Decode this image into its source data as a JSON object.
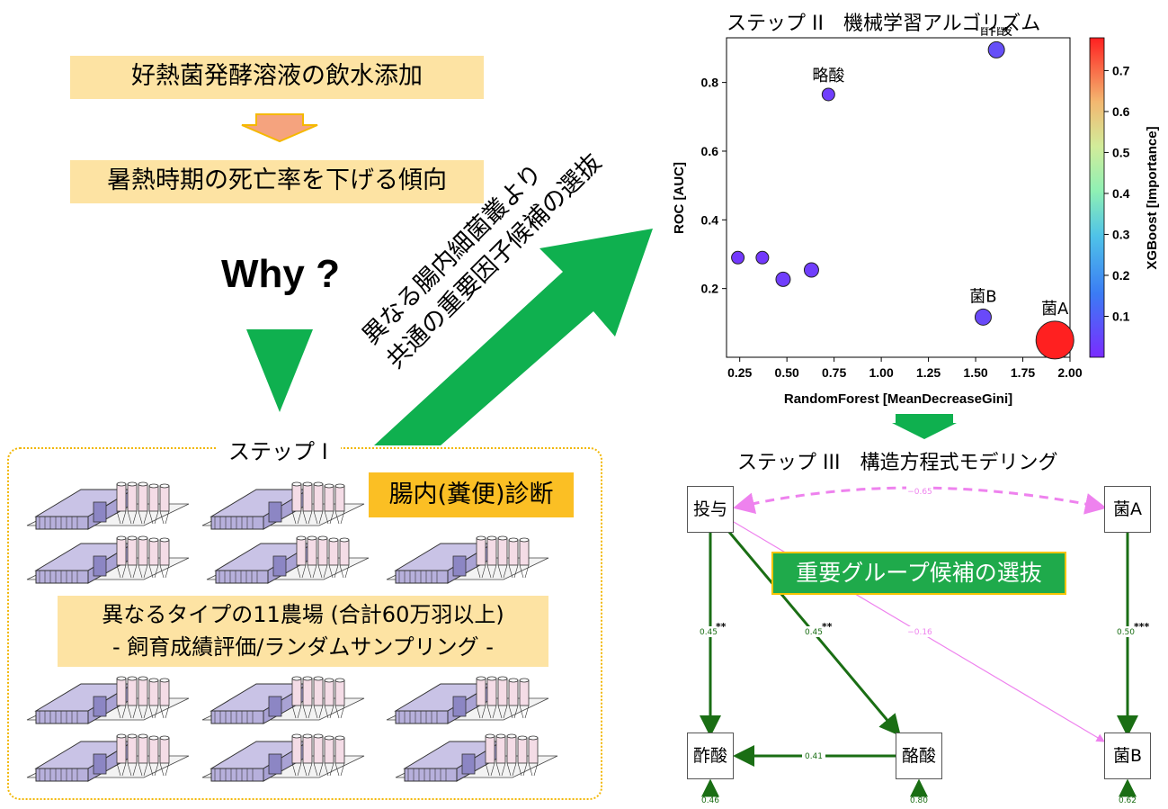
{
  "flow": {
    "box1": "好熱菌発酵溶液の飲水添加",
    "box2": "暑熱時期の死亡率を下げる傾向",
    "why": "Why ?"
  },
  "step1": {
    "title": "ステップ I",
    "diagnosis": "腸内(糞便)診断",
    "farms_line1": "異なるタイプの11農場 (合計60万羽以上)",
    "farms_line2": "- 飼育成績評価/ランダムサンプリング -"
  },
  "arrow_text": {
    "line1": "異なる腸内細菌叢より",
    "line2": "共通の重要因子候補の選抜"
  },
  "step2": {
    "title": "ステップ II　機械学習アルゴリズム"
  },
  "chart_data": {
    "type": "scatter",
    "xlabel": "RandomForest [MeanDecreaseGini]",
    "ylabel": "ROC [AUC]",
    "colorbar_label": "XGBoost [Importance]",
    "xlim": [
      0.18,
      2.0
    ],
    "ylim": [
      0.0,
      0.93
    ],
    "colorbar_lim": [
      0.0,
      0.78
    ],
    "x_ticks": [
      "0.25",
      "0.50",
      "0.75",
      "1.00",
      "1.25",
      "1.50",
      "1.75",
      "2.00"
    ],
    "y_ticks": [
      "0.2",
      "0.4",
      "0.6",
      "0.8"
    ],
    "colorbar_ticks": [
      "0.1",
      "0.2",
      "0.3",
      "0.4",
      "0.5",
      "0.6",
      "0.7"
    ],
    "points": [
      {
        "label": "略酸",
        "x": 0.72,
        "y": 0.765,
        "importance": 0.03,
        "size": 7
      },
      {
        "label": "酢酸",
        "x": 1.61,
        "y": 0.895,
        "importance": 0.06,
        "size": 9
      },
      {
        "label": "",
        "x": 0.24,
        "y": 0.29,
        "importance": 0.02,
        "size": 7
      },
      {
        "label": "",
        "x": 0.37,
        "y": 0.29,
        "importance": 0.02,
        "size": 7
      },
      {
        "label": "",
        "x": 0.48,
        "y": 0.227,
        "importance": 0.03,
        "size": 8
      },
      {
        "label": "",
        "x": 0.63,
        "y": 0.254,
        "importance": 0.03,
        "size": 8
      },
      {
        "label": "菌B",
        "x": 1.54,
        "y": 0.117,
        "importance": 0.05,
        "size": 9
      },
      {
        "label": "菌A",
        "x": 1.92,
        "y": 0.05,
        "importance": 0.77,
        "size": 21
      }
    ],
    "colors": {
      "low": "#7a2cff",
      "mid": "#4fb3e6",
      "high": "#ff2020"
    }
  },
  "step3": {
    "title": "ステップ III　構造方程式モデリング",
    "selection_label": "重要グループ候補の選抜",
    "nodes": {
      "toyo": "投与",
      "kinA": "菌A",
      "sakusan": "酢酸",
      "rakusan": "酪酸",
      "kinB": "菌B"
    },
    "paths": {
      "toyo_kinA": "−0.65",
      "toyo_sakusan": "0.45",
      "toyo_sakusan_sig": "**",
      "toyo_rakusan": "0.45",
      "toyo_rakusan_sig": "**",
      "toyo_kinB": "−0.16",
      "kinA_kinB": "0.50",
      "kinA_kinB_sig": "***",
      "rakusan_sakusan": "0.41",
      "res_sakusan": "0.46",
      "res_rakusan": "0.80",
      "res_kinB": "0.62"
    },
    "colors": {
      "positive": "#1a6e14",
      "negative": "#ee82ee"
    }
  },
  "colors": {
    "green_arrow": "#0fb04f",
    "orange_arrow": "#f5a37e",
    "banner": "#fde3a3",
    "tag": "#fbbf24"
  }
}
